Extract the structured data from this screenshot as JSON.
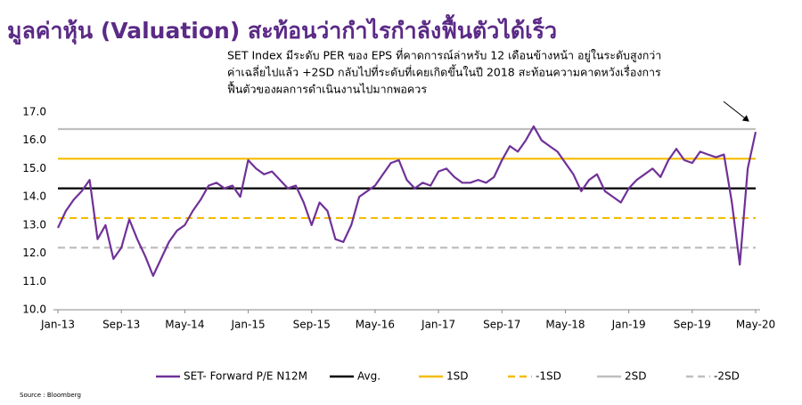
{
  "chart_data": {
    "type": "line",
    "title": "มูลค่าหุ้น (Valuation) สะท้อนว่ากำไรกำลังฟื้นตัวได้เร็ว",
    "annotation": [
      "SET Index มีระดับ PER ของ EPS ที่คาดการณ์ล่าหรับ 12 เดือนข้างหน้า อยู่ในระดับสูงกว่า",
      "ค่าเฉลี่ยไปแล้ว +2SD กลับไปที่ระดับที่เคยเกิดขึ้นในปี 2018 สะท้อนความคาดหวังเรื่องการ",
      "ฟื้นตัวของผลการดำเนินงานไปมากพอควร"
    ],
    "source": "Source : Bloomberg",
    "categories": [
      "Jan-13",
      null,
      null,
      null,
      null,
      null,
      null,
      null,
      "Sep-13",
      null,
      null,
      null,
      null,
      null,
      null,
      null,
      "May-14",
      null,
      null,
      null,
      null,
      null,
      null,
      null,
      "Jan-15",
      null,
      null,
      null,
      null,
      null,
      null,
      null,
      "Sep-15",
      null,
      null,
      null,
      null,
      null,
      null,
      null,
      "May-16",
      null,
      null,
      null,
      null,
      null,
      null,
      null,
      "Jan-17",
      null,
      null,
      null,
      null,
      null,
      null,
      null,
      "Sep-17",
      null,
      null,
      null,
      null,
      null,
      null,
      null,
      "May-18",
      null,
      null,
      null,
      null,
      null,
      null,
      null,
      "Jan-19",
      null,
      null,
      null,
      null,
      null,
      null,
      null,
      "Sep-19",
      null,
      null,
      null,
      null,
      null,
      null,
      null,
      "May-20"
    ],
    "series": [
      {
        "name": "SET- Forward P/E N12M",
        "color": "#6f3198",
        "values": [
          12.9,
          13.5,
          13.9,
          14.2,
          14.6,
          12.5,
          13.0,
          11.8,
          12.2,
          13.2,
          12.5,
          11.9,
          11.2,
          11.8,
          12.4,
          12.8,
          13.0,
          13.5,
          13.9,
          14.4,
          14.5,
          14.3,
          14.4,
          14.0,
          15.3,
          15.0,
          14.8,
          14.9,
          14.6,
          14.3,
          14.4,
          13.8,
          13.0,
          13.8,
          13.5,
          12.5,
          12.4,
          13.0,
          14.0,
          14.2,
          14.4,
          14.8,
          15.2,
          15.3,
          14.6,
          14.3,
          14.5,
          14.4,
          14.9,
          15.0,
          14.7,
          14.5,
          14.5,
          14.6,
          14.5,
          14.7,
          15.3,
          15.8,
          15.6,
          16.0,
          16.5,
          16.0,
          15.8,
          15.6,
          15.2,
          14.8,
          14.2,
          14.6,
          14.8,
          14.2,
          14.0,
          13.8,
          14.3,
          14.6,
          14.8,
          15.0,
          14.7,
          15.3,
          15.7,
          15.3,
          15.2,
          15.6,
          15.5,
          15.4,
          15.5,
          13.8,
          11.6,
          15.0,
          16.3
        ]
      }
    ],
    "reference_lines": [
      {
        "name": "Avg.",
        "value": 14.3,
        "color": "#000000",
        "style": "solid"
      },
      {
        "name": "1SD",
        "value": 15.35,
        "color": "#f5bc00",
        "style": "solid"
      },
      {
        "name": "-1SD",
        "value": 13.25,
        "color": "#f5bc00",
        "style": "dashed"
      },
      {
        "name": "2SD",
        "value": 16.4,
        "color": "#bfbfbf",
        "style": "solid"
      },
      {
        "name": "-2SD",
        "value": 12.2,
        "color": "#bfbfbf",
        "style": "dashed"
      }
    ],
    "ylim": [
      10,
      17
    ],
    "yticks": [
      {
        "value": 10,
        "label": "10.0"
      },
      {
        "value": 11,
        "label": "11.0"
      },
      {
        "value": 12,
        "label": "12.0"
      },
      {
        "value": 13,
        "label": "13.0"
      },
      {
        "value": 14,
        "label": "14.0"
      },
      {
        "value": 15,
        "label": "15.0"
      },
      {
        "value": 16,
        "label": "16.0"
      },
      {
        "value": 17,
        "label": "17.0"
      }
    ],
    "grid": false
  }
}
